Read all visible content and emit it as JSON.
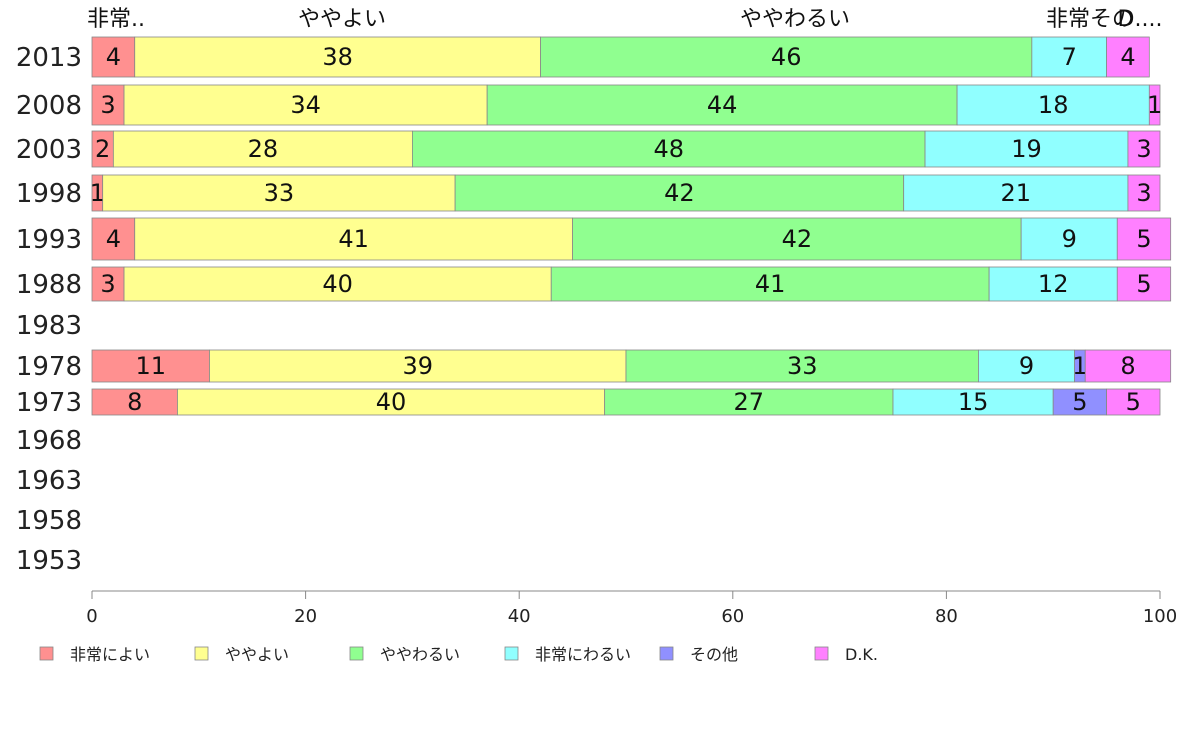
{
  "chart_data": {
    "type": "bar",
    "orientation": "horizontal",
    "stacked": true,
    "categories": [
      "2013",
      "2008",
      "2003",
      "1998",
      "1993",
      "1988",
      "1983",
      "1978",
      "1973",
      "1968",
      "1963",
      "1958",
      "1953"
    ],
    "series": [
      {
        "name": "非常によい",
        "color": "#ff9090",
        "values": [
          4,
          3,
          2,
          1,
          4,
          3,
          null,
          11,
          8,
          null,
          null,
          null,
          null
        ]
      },
      {
        "name": "ややよい",
        "color": "#ffff90",
        "values": [
          38,
          34,
          28,
          33,
          41,
          40,
          null,
          39,
          40,
          null,
          null,
          null,
          null
        ]
      },
      {
        "name": "ややわるい",
        "color": "#90ff90",
        "values": [
          46,
          44,
          48,
          42,
          42,
          41,
          null,
          33,
          27,
          null,
          null,
          null,
          null
        ]
      },
      {
        "name": "非常にわるい",
        "color": "#90ffff",
        "values": [
          7,
          18,
          19,
          21,
          9,
          12,
          null,
          9,
          15,
          null,
          null,
          null,
          null
        ]
      },
      {
        "name": "その他",
        "color": "#9090ff",
        "values": [
          0,
          0,
          0,
          0,
          0,
          0,
          null,
          1,
          5,
          null,
          null,
          null,
          null
        ]
      },
      {
        "name": "D.K.",
        "color": "#ff80ff",
        "values": [
          4,
          1,
          3,
          3,
          5,
          5,
          null,
          8,
          5,
          null,
          null,
          null,
          null
        ]
      }
    ],
    "top_labels": [
      "非常..",
      "ややよい",
      "ややわるい",
      "非常その",
      "D...."
    ],
    "xlim": [
      0,
      100
    ],
    "xticks": [
      "0",
      "20",
      "40",
      "60",
      "80",
      "100"
    ],
    "legend_position": "bottom",
    "grid": false
  }
}
